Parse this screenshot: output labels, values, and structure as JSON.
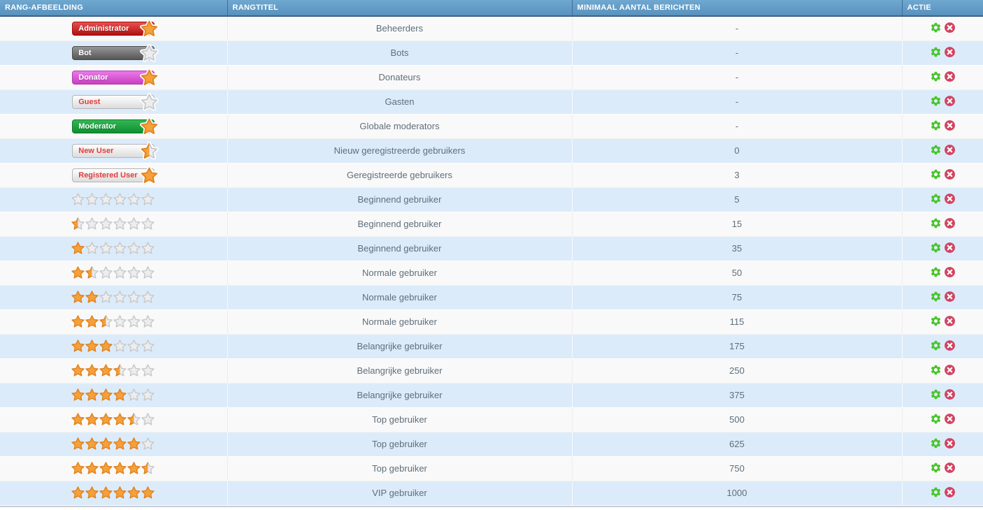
{
  "table": {
    "headers": [
      "RANG-AFBEELDING",
      "RANGTITEL",
      "MINIMAAL AANTAL BERICHTEN",
      "ACTIE"
    ],
    "stars_total": 6,
    "rows": [
      {
        "type": "badge",
        "label": "Administrator",
        "style": "red",
        "star": "orange",
        "title": "Beheerders",
        "min_posts": "-"
      },
      {
        "type": "badge",
        "label": "Bot",
        "style": "gray",
        "star": "silver",
        "title": "Bots",
        "min_posts": "-"
      },
      {
        "type": "badge",
        "label": "Donator",
        "style": "magenta",
        "star": "orange",
        "title": "Donateurs",
        "min_posts": "-"
      },
      {
        "type": "badge",
        "label": "Guest",
        "style": "light",
        "star": "silver",
        "title": "Gasten",
        "min_posts": "-"
      },
      {
        "type": "badge",
        "label": "Moderator",
        "style": "green",
        "star": "orange",
        "title": "Globale moderators",
        "min_posts": "-"
      },
      {
        "type": "badge",
        "label": "New User",
        "style": "light",
        "star": "half",
        "title": "Nieuw geregistreerde gebruikers",
        "min_posts": "0"
      },
      {
        "type": "badge",
        "label": "Registered User",
        "style": "light",
        "star": "orange",
        "title": "Geregistreerde gebruikers",
        "min_posts": "3"
      },
      {
        "type": "stars",
        "stars": 0,
        "title": "Beginnend gebruiker",
        "min_posts": "5"
      },
      {
        "type": "stars",
        "stars": 0.5,
        "title": "Beginnend gebruiker",
        "min_posts": "15"
      },
      {
        "type": "stars",
        "stars": 1,
        "title": "Beginnend gebruiker",
        "min_posts": "35"
      },
      {
        "type": "stars",
        "stars": 1.5,
        "title": "Normale gebruiker",
        "min_posts": "50"
      },
      {
        "type": "stars",
        "stars": 2,
        "title": "Normale gebruiker",
        "min_posts": "75"
      },
      {
        "type": "stars",
        "stars": 2.5,
        "title": "Normale gebruiker",
        "min_posts": "115"
      },
      {
        "type": "stars",
        "stars": 3,
        "title": "Belangrijke gebruiker",
        "min_posts": "175"
      },
      {
        "type": "stars",
        "stars": 3.5,
        "title": "Belangrijke gebruiker",
        "min_posts": "250"
      },
      {
        "type": "stars",
        "stars": 4,
        "title": "Belangrijke gebruiker",
        "min_posts": "375"
      },
      {
        "type": "stars",
        "stars": 4.5,
        "title": "Top gebruiker",
        "min_posts": "500"
      },
      {
        "type": "stars",
        "stars": 5,
        "title": "Top gebruiker",
        "min_posts": "625"
      },
      {
        "type": "stars",
        "stars": 5.5,
        "title": "Top gebruiker",
        "min_posts": "750"
      },
      {
        "type": "stars",
        "stars": 6,
        "title": "VIP gebruiker",
        "min_posts": "1000"
      }
    ],
    "actions": {
      "edit": "gear-icon",
      "delete": "delete-icon"
    }
  },
  "colors": {
    "header_blue": "#5892bd",
    "header_border": "#3a6286",
    "row_light": "#f9f9f9",
    "row_alt_blue": "#dcebfa",
    "text": "#5f6e7b",
    "gear_green": "#4ac42e",
    "delete_red": "#d24362",
    "star_orange": "#f6a03a",
    "star_empty": "#ededee"
  }
}
